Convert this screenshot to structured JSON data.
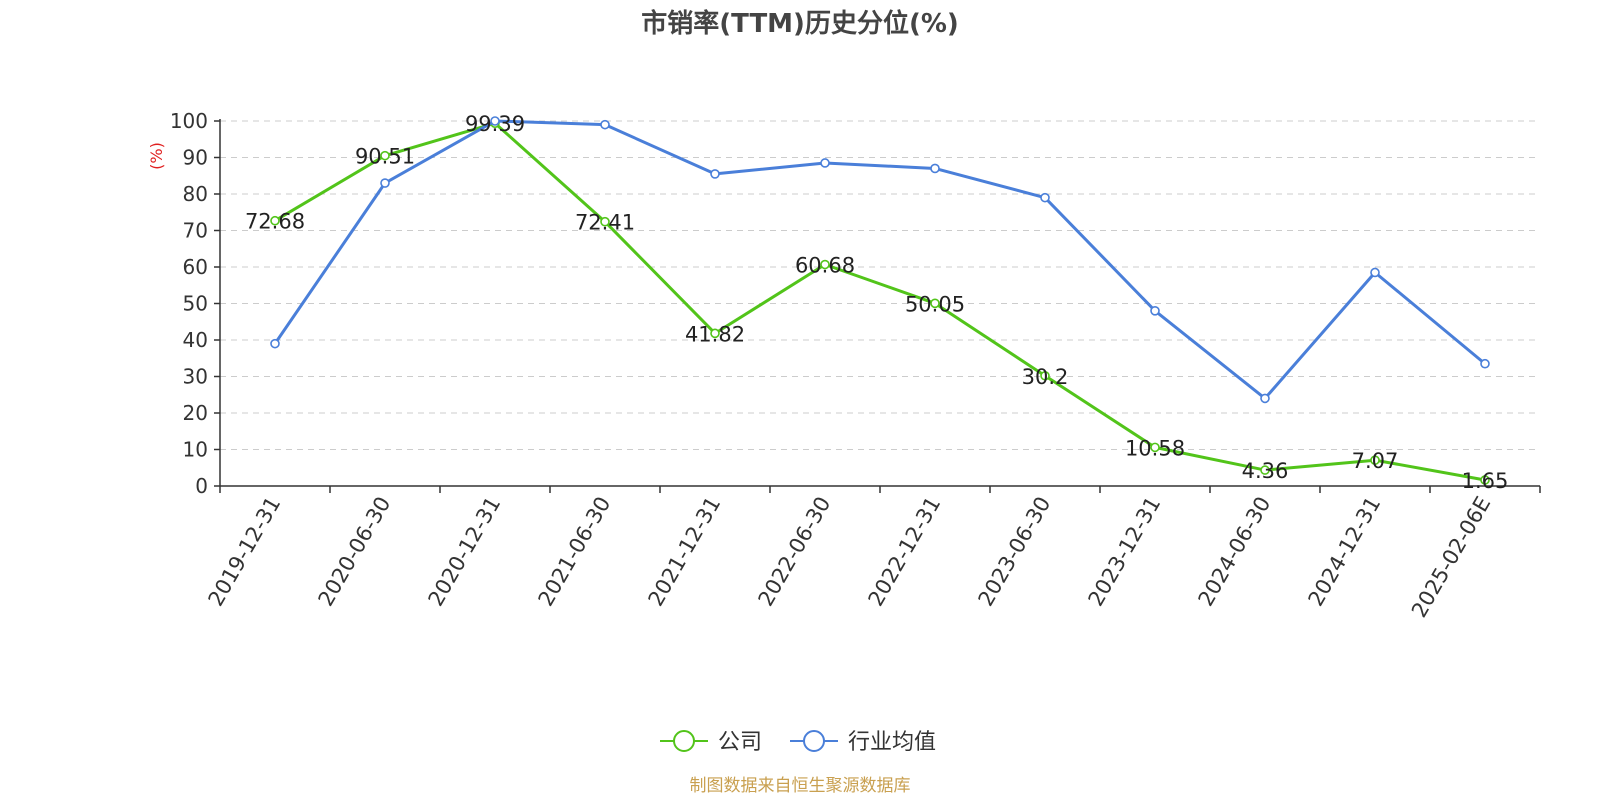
{
  "chart_data": {
    "type": "line",
    "title": "市销率(TTM)历史分位(%)",
    "y_unit_label": "(%)",
    "categories": [
      "2019-12-31",
      "2020-06-30",
      "2020-12-31",
      "2021-06-30",
      "2021-12-31",
      "2022-06-30",
      "2022-12-31",
      "2023-06-30",
      "2023-12-31",
      "2024-06-30",
      "2024-12-31",
      "2025-02-06E"
    ],
    "ylim": [
      0,
      100
    ],
    "yticks": [
      0,
      10,
      20,
      30,
      40,
      50,
      60,
      70,
      80,
      90,
      100
    ],
    "grid": true,
    "legend_position": "bottom-center",
    "series": [
      {
        "name": "公司",
        "color": "#52c41a",
        "values": [
          72.68,
          90.51,
          99.39,
          72.41,
          41.82,
          60.68,
          50.05,
          30.2,
          10.58,
          4.36,
          7.07,
          1.65
        ],
        "labels": [
          "72.68",
          "90.51",
          "99.39",
          "72.41",
          "41.82",
          "60.68",
          "50.05",
          "30.2",
          "10.58",
          "4.36",
          "7.07",
          "1.65"
        ]
      },
      {
        "name": "行业均值",
        "color": "#4a7fd9",
        "values": [
          39.0,
          83.0,
          100.0,
          99.0,
          85.5,
          88.5,
          87.0,
          79.0,
          48.0,
          24.0,
          58.5,
          33.5
        ]
      }
    ]
  },
  "footer": {
    "source": "制图数据来自恒生聚源数据库"
  }
}
